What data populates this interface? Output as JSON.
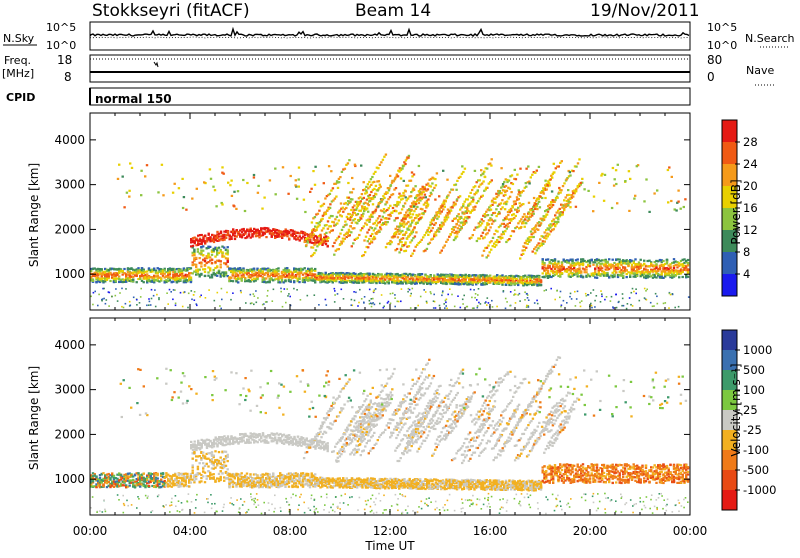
{
  "header": {
    "radar": "Stokkseyri (fitACF)",
    "beam": "Beam 14",
    "date": "19/Nov/2011"
  },
  "summary": {
    "nsky_label": "N.Sky",
    "nsearch_label": "N.Search",
    "freq_label": "Freq.",
    "freq_unit": "[MHz]",
    "nave_label": "Nave",
    "cpid_label": "CPID",
    "cpid_value": "normal 150",
    "noise_ticks": [
      "10^5",
      "10^0"
    ],
    "freq_ticks": [
      "18",
      "8"
    ],
    "nave_ticks": [
      "80",
      "0"
    ]
  },
  "chart_data": [
    {
      "type": "heatmap",
      "name": "power",
      "ylabel": "Slant Range [km]",
      "xlabel": "Time UT",
      "ylim": [
        200,
        4600
      ],
      "y_ticks": [
        1000,
        2000,
        3000,
        4000
      ],
      "x_ticks": [
        "00:00",
        "04:00",
        "08:00",
        "12:00",
        "16:00",
        "20:00",
        "00:00"
      ],
      "colorbar": {
        "label": "Power [dB]",
        "ticks": [
          "4",
          "8",
          "12",
          "16",
          "20",
          "24",
          "28"
        ],
        "colors": [
          "#1a1aee",
          "#2f5fb4",
          "#3d8a5a",
          "#8cc43f",
          "#e8d000",
          "#f59a1a",
          "#f05a14",
          "#e51a14"
        ]
      }
    },
    {
      "type": "heatmap",
      "name": "velocity",
      "ylabel": "Slant Range [km]",
      "xlabel": "Time UT",
      "ylim": [
        200,
        4600
      ],
      "y_ticks": [
        1000,
        2000,
        3000,
        4000
      ],
      "x_ticks": [
        "00:00",
        "04:00",
        "08:00",
        "12:00",
        "16:00",
        "20:00",
        "00:00"
      ],
      "colorbar": {
        "label": "Velocity [m s⁻¹]",
        "ticks": [
          "1000",
          "500",
          "100",
          "25",
          "-25",
          "-100",
          "-500",
          "-1000"
        ],
        "colors": [
          "#2a3a9a",
          "#3a70b0",
          "#3d9a6a",
          "#7cc840",
          "#c9c9c4",
          "#f2b020",
          "#ef7a18",
          "#e84a14",
          "#e51a14"
        ]
      }
    }
  ]
}
